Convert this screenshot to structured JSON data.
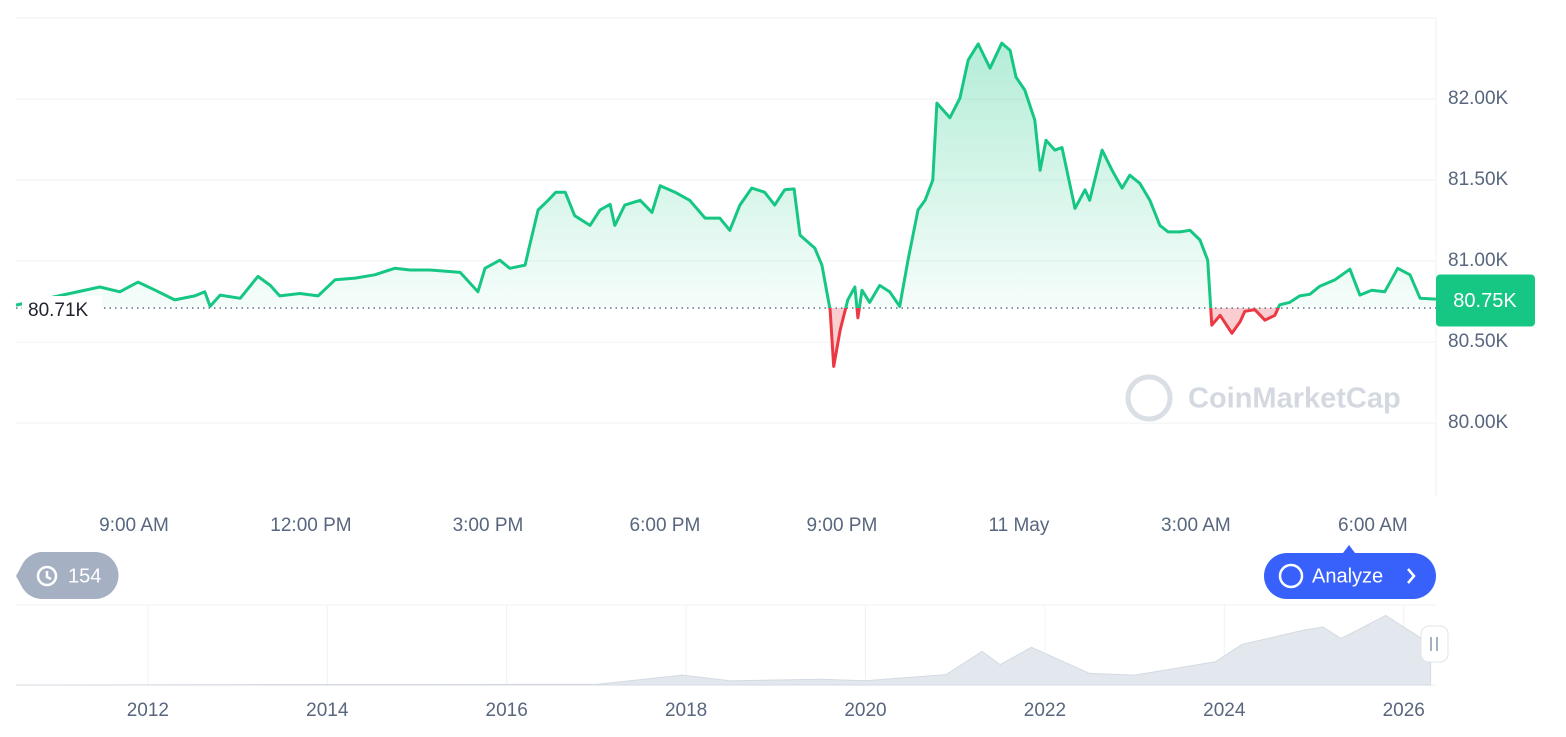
{
  "chart_data": [
    {
      "type": "line",
      "x": [
        7.0,
        8.42,
        8.76,
        9.07,
        9.36,
        9.69,
        10.03,
        10.2,
        10.29,
        10.46,
        10.8,
        11.1,
        11.31,
        11.47,
        11.81,
        12.12,
        12.41,
        12.75,
        13.08,
        13.42,
        13.68,
        14.02,
        14.53,
        14.83,
        14.95,
        15.2,
        15.37,
        15.63,
        15.71,
        15.85,
        16.02,
        16.15,
        16.31,
        16.47,
        16.73,
        16.9,
        17.07,
        17.15,
        17.32,
        17.58,
        17.78,
        17.92,
        18.17,
        18.42,
        18.68,
        18.93,
        19.1,
        19.27,
        19.47,
        19.69,
        19.86,
        20.03,
        20.19,
        20.29,
        20.54,
        20.66,
        20.8,
        20.86,
        20.97,
        21.1,
        21.22,
        21.27,
        21.34,
        21.47,
        21.64,
        21.81,
        21.98,
        22.12,
        22.29,
        22.41,
        22.54,
        22.61,
        22.83,
        23.0,
        23.14,
        23.31,
        23.51,
        23.71,
        23.85,
        23.95,
        24.1,
        24.27,
        24.36,
        24.46,
        24.61,
        24.73,
        24.95,
        25.12,
        25.2,
        25.41,
        25.58,
        25.75,
        25.88,
        26.05,
        26.22,
        26.39,
        26.53,
        26.73,
        26.9,
        27.07,
        27.2,
        27.27,
        27.41,
        27.61,
        27.75,
        27.83,
        28.0,
        28.17,
        28.34,
        28.42,
        28.59,
        28.76,
        28.93,
        29.1,
        29.36,
        29.61,
        29.78,
        29.98,
        30.2,
        30.42,
        30.63,
        30.8,
        31.07
      ],
      "values": [
        80728,
        80840,
        80810,
        80870,
        80820,
        80760,
        80785,
        80810,
        80720,
        80790,
        80770,
        80905,
        80850,
        80785,
        80800,
        80785,
        80885,
        80895,
        80915,
        80955,
        80945,
        80945,
        80930,
        80810,
        80955,
        81005,
        80955,
        80975,
        81100,
        81315,
        81375,
        81425,
        81425,
        81280,
        81220,
        81315,
        81350,
        81220,
        81345,
        81375,
        81300,
        81465,
        81425,
        81375,
        81265,
        81265,
        81190,
        81345,
        81450,
        81425,
        81345,
        81440,
        81445,
        81160,
        81080,
        80975,
        80700,
        80350,
        80575,
        80760,
        80840,
        80650,
        80820,
        80745,
        80850,
        80810,
        80720,
        81005,
        81315,
        81375,
        81500,
        81975,
        81885,
        82005,
        82240,
        82340,
        82190,
        82345,
        82300,
        82135,
        82055,
        81870,
        81560,
        81745,
        81685,
        81700,
        81325,
        81440,
        81375,
        81685,
        81560,
        81450,
        81530,
        81480,
        81375,
        81220,
        81180,
        81180,
        81190,
        81130,
        81005,
        80605,
        80665,
        80555,
        80625,
        80690,
        80700,
        80635,
        80665,
        80730,
        80745,
        80785,
        80795,
        80845,
        80885,
        80950,
        80790,
        80820,
        80810,
        80955,
        80915,
        80770,
        80765
      ],
      "up_color": "#16c784",
      "down_color": "#ea3943",
      "reference": {
        "value": 80710,
        "label": "80.71K"
      },
      "current": {
        "value": 80750,
        "label": "80.75K"
      },
      "xlim": [
        7,
        31.07
      ],
      "xticks": [
        {
          "value": 9,
          "label": "9:00 AM"
        },
        {
          "value": 12,
          "label": "12:00 PM"
        },
        {
          "value": 15,
          "label": "3:00 PM"
        },
        {
          "value": 18,
          "label": "6:00 PM"
        },
        {
          "value": 21,
          "label": "9:00 PM"
        },
        {
          "value": 24,
          "label": "11 May"
        },
        {
          "value": 27,
          "label": "3:00 AM"
        },
        {
          "value": 30,
          "label": "6:00 AM"
        }
      ],
      "ylim": [
        79550,
        82500
      ],
      "yticks": [
        {
          "value": 80000,
          "label": "80.00K"
        },
        {
          "value": 80500,
          "label": "80.50K"
        },
        {
          "value": 81000,
          "label": "81.00K"
        },
        {
          "value": 81500,
          "label": "81.50K"
        },
        {
          "value": 82000,
          "label": "82.00K"
        }
      ],
      "grid": true,
      "watermark": "CoinMarketCap",
      "history_count": "154",
      "button": "Analyze"
    },
    {
      "type": "area",
      "x": [
        2010.53,
        2013.9,
        2017.0,
        2017.96,
        2018.5,
        2019.5,
        2020.0,
        2020.9,
        2021.3,
        2021.5,
        2021.85,
        2022.5,
        2023.0,
        2023.9,
        2024.2,
        2024.9,
        2025.1,
        2025.3,
        2025.8,
        2025.9,
        2026.1,
        2026.3
      ],
      "values": [
        0,
        800,
        1000,
        17000,
        7000,
        10000,
        7500,
        18000,
        58000,
        35000,
        65000,
        20000,
        17000,
        40000,
        70000,
        95000,
        100000,
        80000,
        120000,
        110000,
        90000,
        70000
      ],
      "color": "#e3e7ee",
      "xlim": [
        2010.53,
        2026.36
      ],
      "ylim": [
        0,
        138000
      ],
      "xticks": [
        2012,
        2014,
        2016,
        2018,
        2020,
        2022,
        2024,
        2026
      ]
    }
  ]
}
